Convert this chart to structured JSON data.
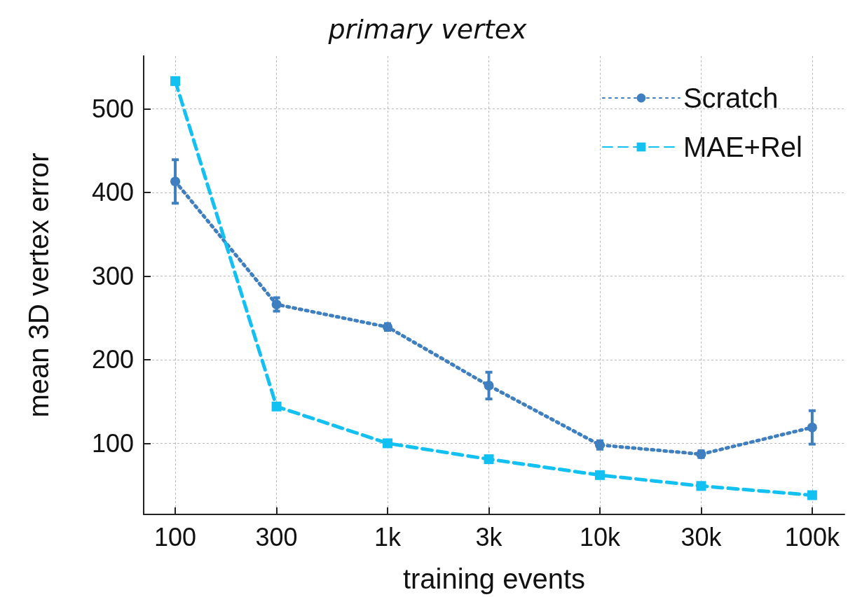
{
  "chart_data": {
    "type": "line",
    "title": "primary vertex",
    "xlabel": "training events",
    "ylabel": "mean 3D vertex error",
    "log": "x",
    "x": [
      100,
      300,
      1000,
      3000,
      10000,
      30000,
      100000
    ],
    "xlim": [
      71,
      142000
    ],
    "xticks": [
      100,
      300,
      {
        "value": 1000,
        "label": "1k"
      },
      {
        "value": 3000,
        "label": "3k"
      },
      {
        "value": 10000,
        "label": "10k"
      },
      {
        "value": 30000,
        "label": "30k"
      },
      {
        "value": 100000,
        "label": "100k"
      }
    ],
    "ylim": [
      15,
      563
    ],
    "yticks": [
      100,
      200,
      300,
      400,
      500
    ],
    "grid": true,
    "legend": "top right",
    "series": [
      {
        "name": "Scratch",
        "color": "#3f7fbf",
        "marker": "circle",
        "line_style": "dotted",
        "values": [
          413,
          266,
          239,
          169,
          98,
          87,
          119
        ],
        "errors": [
          26,
          8,
          4,
          16,
          5,
          4,
          20
        ]
      },
      {
        "name": "MAE+Rel",
        "color": "#12c0f2",
        "marker": "square",
        "line_style": "dashed",
        "values": [
          533,
          144,
          100,
          81,
          62,
          49,
          38
        ],
        "errors": [
          null,
          null,
          null,
          null,
          null,
          null,
          null
        ]
      }
    ]
  }
}
